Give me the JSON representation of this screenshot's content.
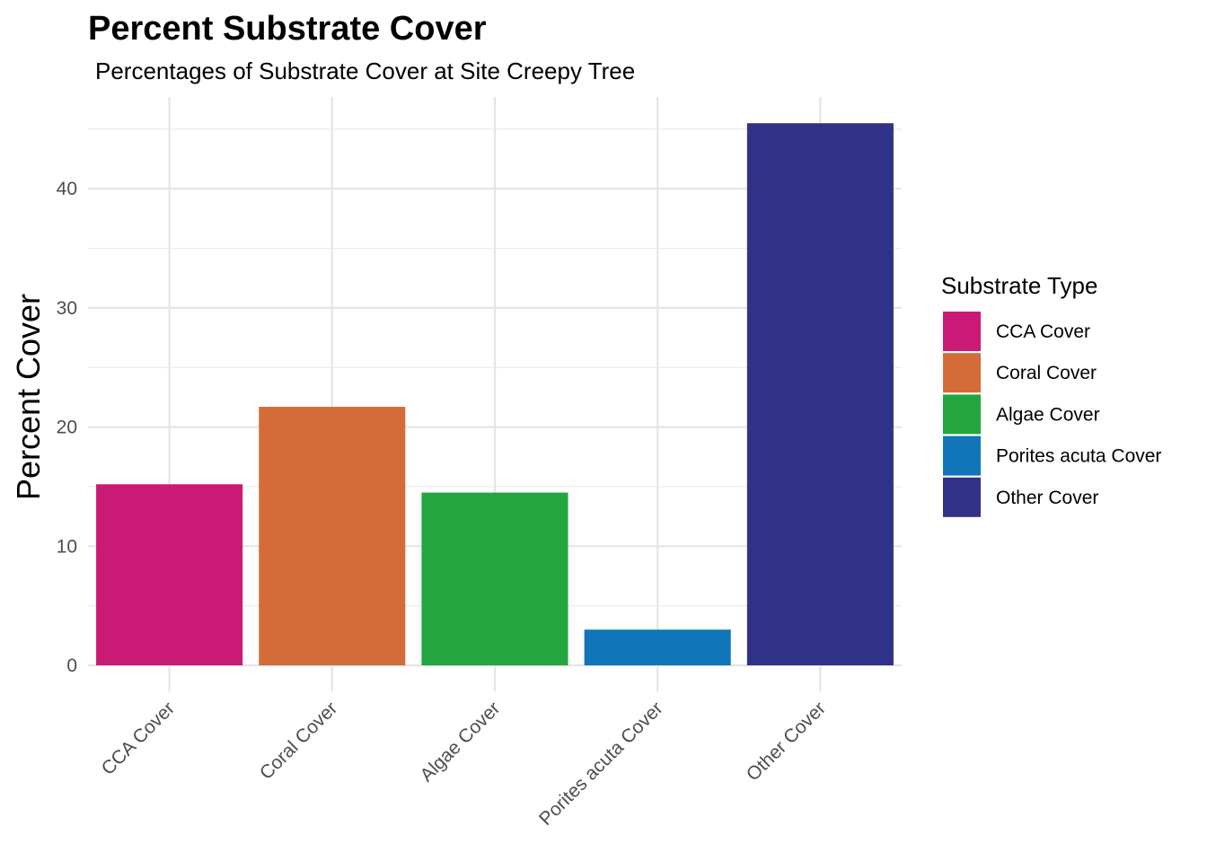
{
  "chart_data": {
    "type": "bar",
    "title": "Percent Substrate Cover",
    "subtitle": "Percentages of Substrate Cover at Site Creepy Tree",
    "xlabel": "",
    "ylabel": "Percent Cover",
    "categories": [
      "CCA Cover",
      "Coral Cover",
      "Algae Cover",
      "Porites acuta Cover",
      "Other Cover"
    ],
    "values": [
      15.2,
      21.7,
      14.5,
      3.0,
      45.5
    ],
    "colors": [
      "#CB1A75",
      "#D36C38",
      "#23A63E",
      "#1076B9",
      "#303289"
    ],
    "ylim": [
      0,
      48
    ],
    "yticks": [
      0,
      10,
      20,
      30,
      40
    ],
    "grid": true,
    "legend": {
      "title": "Substrate Type",
      "placement": "right",
      "entries": [
        "CCA Cover",
        "Coral Cover",
        "Algae Cover",
        "Porites acuta Cover",
        "Other Cover"
      ]
    }
  }
}
